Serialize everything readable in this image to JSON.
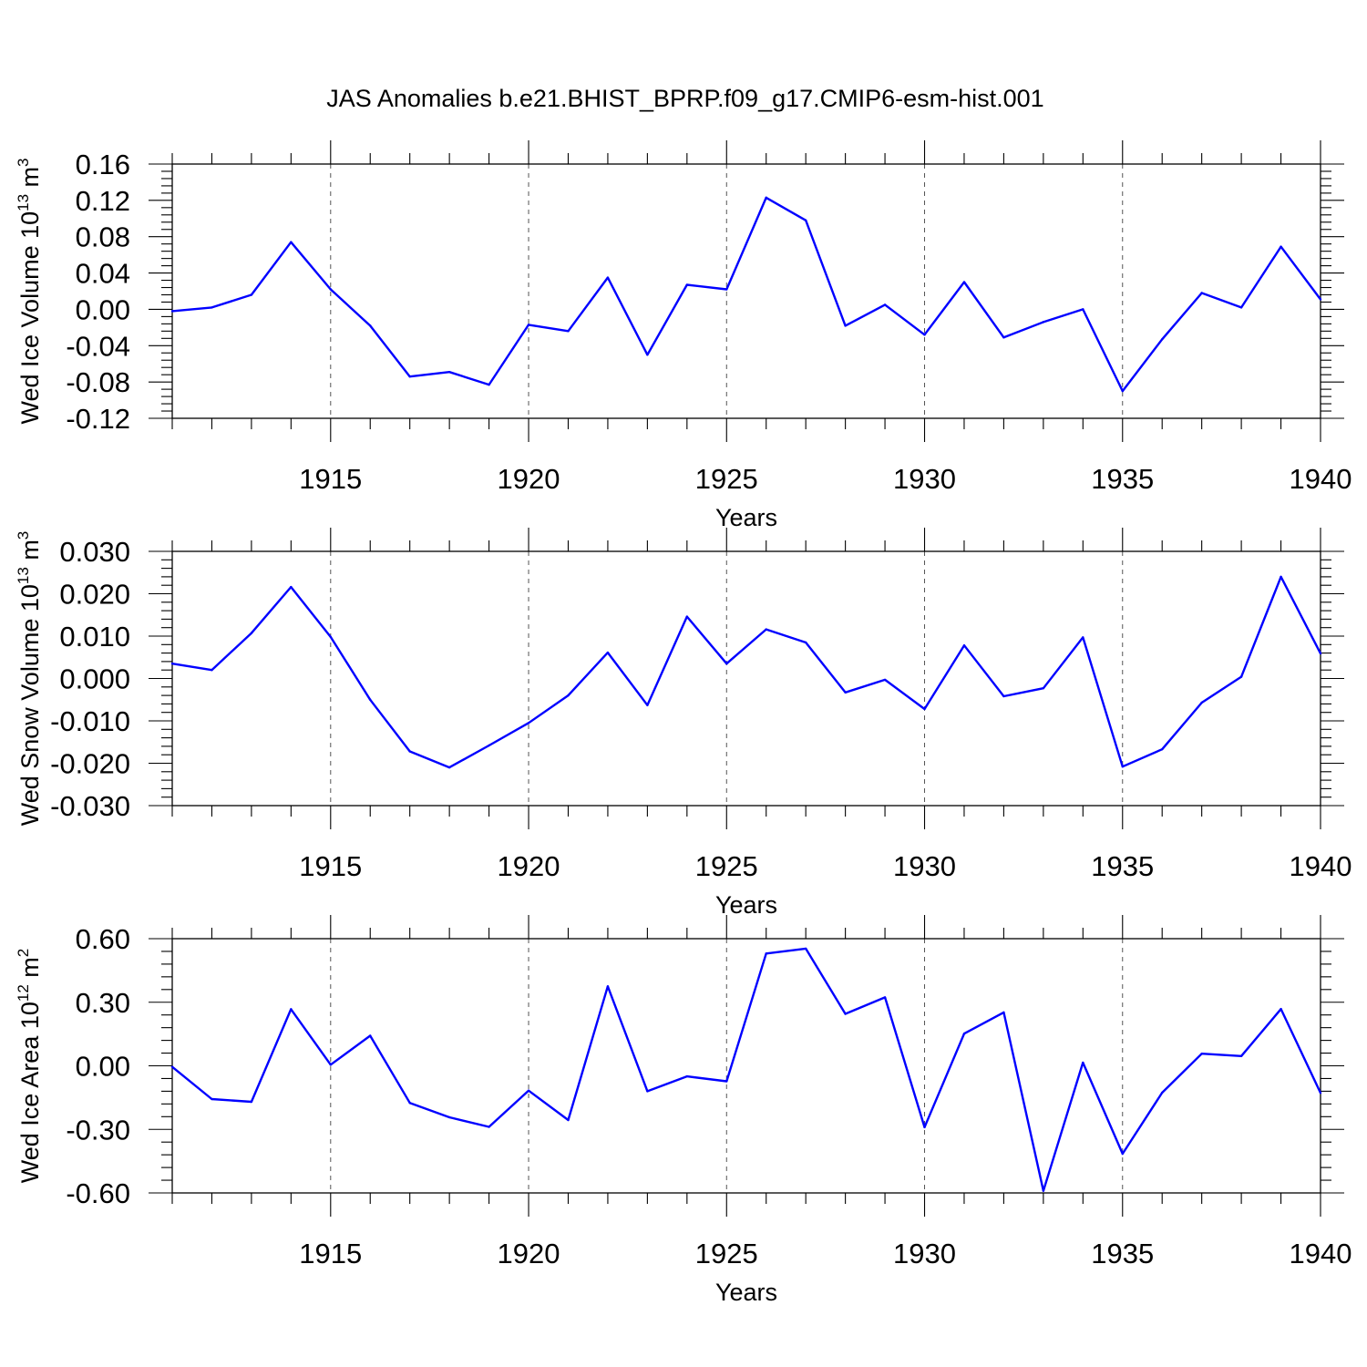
{
  "title": "JAS Anomalies b.e21.BHIST_BPRP.f09_g17.CMIP6-esm-hist.001",
  "colors": {
    "line": "#0000ff",
    "axis": "#000000",
    "grid": "#555555"
  },
  "chart_data": [
    {
      "type": "line",
      "ylabel": "Wed Ice Volume 10",
      "ylabel_exp": "13",
      "ylabel_unit": " m",
      "ylabel_unit_exp": "3",
      "xlabel": "Years",
      "ylim": [
        -0.12,
        0.16
      ],
      "xlim": [
        1911,
        1940
      ],
      "yticks": [
        "-0.12",
        "-0.08",
        "-0.04",
        "0.00",
        "0.04",
        "0.08",
        "0.12",
        "0.16"
      ],
      "xticks": [
        "1915",
        "1920",
        "1925",
        "1930",
        "1935",
        "1940"
      ],
      "grid": "vertical dashed at major x ticks",
      "x": [
        1911,
        1912,
        1913,
        1914,
        1915,
        1916,
        1917,
        1918,
        1919,
        1920,
        1921,
        1922,
        1923,
        1924,
        1925,
        1926,
        1927,
        1928,
        1929,
        1930,
        1931,
        1932,
        1933,
        1934,
        1935,
        1936,
        1937,
        1938,
        1939,
        1940
      ],
      "values": [
        -0.002,
        0.002,
        0.016,
        0.074,
        0.022,
        -0.018,
        -0.074,
        -0.069,
        -0.083,
        -0.017,
        -0.024,
        0.035,
        -0.05,
        0.027,
        0.022,
        0.123,
        0.098,
        -0.018,
        0.005,
        -0.028,
        0.03,
        -0.031,
        -0.014,
        0.0,
        -0.09,
        -0.033,
        0.018,
        0.002,
        0.069,
        0.011
      ]
    },
    {
      "type": "line",
      "ylabel": "Wed Snow Volume 10",
      "ylabel_exp": "13",
      "ylabel_unit": " m",
      "ylabel_unit_exp": "3",
      "xlabel": "Years",
      "ylim": [
        -0.03,
        0.03
      ],
      "xlim": [
        1911,
        1940
      ],
      "yticks": [
        "-0.030",
        "-0.020",
        "-0.010",
        "0.000",
        "0.010",
        "0.020",
        "0.030"
      ],
      "xticks": [
        "1915",
        "1920",
        "1925",
        "1930",
        "1935",
        "1940"
      ],
      "grid": "vertical dashed at major x ticks",
      "x": [
        1911,
        1912,
        1913,
        1914,
        1915,
        1916,
        1917,
        1918,
        1919,
        1920,
        1921,
        1922,
        1923,
        1924,
        1925,
        1926,
        1927,
        1928,
        1929,
        1930,
        1931,
        1932,
        1933,
        1934,
        1935,
        1936,
        1937,
        1938,
        1939,
        1940
      ],
      "values": [
        0.0035,
        0.002,
        0.0107,
        0.0216,
        0.0098,
        -0.005,
        -0.0172,
        -0.021,
        -0.0158,
        -0.0105,
        -0.004,
        0.0061,
        -0.0063,
        0.0146,
        0.0035,
        0.0116,
        0.0085,
        -0.0033,
        -0.0003,
        -0.0072,
        0.0078,
        -0.0042,
        -0.0023,
        0.0097,
        -0.0208,
        -0.0167,
        -0.0057,
        0.0004,
        0.024,
        0.0059
      ]
    },
    {
      "type": "line",
      "ylabel": "Wed Ice Area 10",
      "ylabel_exp": "12",
      "ylabel_unit": " m",
      "ylabel_unit_exp": "2",
      "xlabel": "Years",
      "ylim": [
        -0.6,
        0.6
      ],
      "xlim": [
        1911,
        1940
      ],
      "yticks": [
        "-0.60",
        "-0.30",
        "0.00",
        "0.30",
        "0.60"
      ],
      "xticks": [
        "1915",
        "1920",
        "1925",
        "1930",
        "1935",
        "1940"
      ],
      "grid": "vertical dashed at major x ticks",
      "x": [
        1911,
        1912,
        1913,
        1914,
        1915,
        1916,
        1917,
        1918,
        1919,
        1920,
        1921,
        1922,
        1923,
        1924,
        1925,
        1926,
        1927,
        1928,
        1929,
        1930,
        1931,
        1932,
        1933,
        1934,
        1935,
        1936,
        1937,
        1938,
        1939,
        1940
      ],
      "values": [
        -0.005,
        -0.157,
        -0.17,
        0.267,
        0.005,
        0.142,
        -0.175,
        -0.243,
        -0.288,
        -0.117,
        -0.256,
        0.375,
        -0.12,
        -0.05,
        -0.073,
        0.53,
        0.553,
        0.245,
        0.323,
        -0.29,
        0.152,
        0.252,
        -0.59,
        0.015,
        -0.415,
        -0.127,
        0.057,
        0.046,
        0.268,
        -0.128
      ]
    }
  ]
}
